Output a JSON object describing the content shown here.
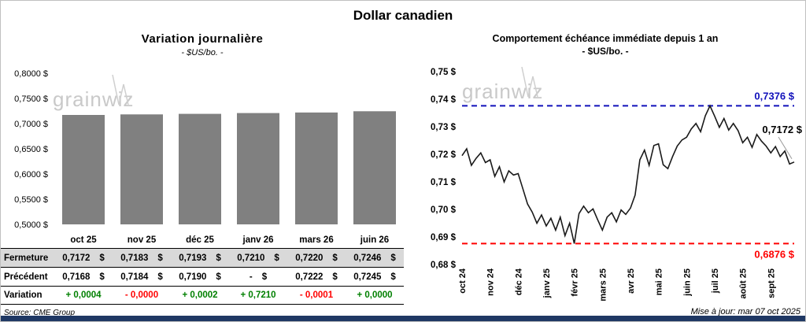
{
  "page": {
    "title": "Dollar canadien",
    "footer_strip_color": "#1f3864"
  },
  "left_panel": {
    "title": "Variation journalière",
    "subtitle": "- $US/bo. -",
    "source": "Source: CME Group",
    "watermark": "grainwiz"
  },
  "right_panel": {
    "title": "Comportement échéance immédiate depuis 1 an",
    "subtitle": "- $US/bo. -",
    "update": "Mise à jour: mar 07 oct 2025",
    "watermark": "grainwiz"
  },
  "table": {
    "col_headers": [
      "oct 25",
      "nov 25",
      "déc 25",
      "janv 26",
      "mars 26",
      "juin 26"
    ],
    "rows": [
      {
        "label": "Fermeture",
        "values": [
          "0,7172",
          "0,7183",
          "0,7193",
          "0,7210",
          "0,7220",
          "0,7246"
        ],
        "suffix": "$",
        "bg": "#d9d9d9"
      },
      {
        "label": "Précédent",
        "values": [
          "0,7168",
          "0,7184",
          "0,7190",
          "-",
          "0,7222",
          "0,7245"
        ],
        "suffix": "$"
      },
      {
        "label": "Variation",
        "values": [
          "+ 0,0004",
          "- 0,0000",
          "+ 0,0002",
          "+ 0,7210",
          "- 0,0001",
          "+ 0,0000"
        ],
        "colors": [
          "#008000",
          "#ff0000",
          "#008000",
          "#008000",
          "#ff0000",
          "#008000"
        ]
      }
    ]
  },
  "chart_data": [
    {
      "type": "bar",
      "title": "Variation journalière",
      "subtitle": "- $US/bo. -",
      "categories": [
        "oct 25",
        "nov 25",
        "déc 25",
        "janv 26",
        "mars 26",
        "juin 26"
      ],
      "values": [
        0.7172,
        0.7183,
        0.7193,
        0.721,
        0.722,
        0.7246
      ],
      "ylim": [
        0.5,
        0.8
      ],
      "ytick_step": 0.05,
      "ytick_labels": [
        "0,8000 $",
        "0,7500 $",
        "0,7000 $",
        "0,6500 $",
        "0,6000 $",
        "0,5500 $",
        "0,5000 $"
      ],
      "bar_color": "#808080"
    },
    {
      "type": "line",
      "title": "Comportement échéance immédiate depuis 1 an",
      "subtitle": "- $US/bo. -",
      "x_labels": [
        "oct 24",
        "nov 24",
        "déc 24",
        "janv 25",
        "févr 25",
        "mars 25",
        "avr 25",
        "mai 25",
        "juin 25",
        "juil 25",
        "août 25",
        "sept 25"
      ],
      "points_per_month": 6,
      "values": [
        0.7195,
        0.722,
        0.716,
        0.7185,
        0.7205,
        0.717,
        0.718,
        0.712,
        0.7155,
        0.71,
        0.714,
        0.7125,
        0.713,
        0.7075,
        0.702,
        0.699,
        0.695,
        0.698,
        0.694,
        0.6968,
        0.6925,
        0.6972,
        0.6905,
        0.695,
        0.6876,
        0.6985,
        0.7012,
        0.6988,
        0.7002,
        0.6962,
        0.6925,
        0.6972,
        0.6988,
        0.6955,
        0.6998,
        0.6982,
        0.7005,
        0.7052,
        0.718,
        0.7215,
        0.716,
        0.7232,
        0.7238,
        0.7162,
        0.7148,
        0.7192,
        0.723,
        0.7252,
        0.7262,
        0.7292,
        0.7312,
        0.7282,
        0.734,
        0.7376,
        0.7338,
        0.7298,
        0.733,
        0.7288,
        0.7312,
        0.7286,
        0.7242,
        0.7262,
        0.7225,
        0.7272,
        0.7248,
        0.723,
        0.7205,
        0.7228,
        0.7192,
        0.7212,
        0.7165,
        0.7172
      ],
      "ylim": [
        0.68,
        0.75
      ],
      "ytick_step": 0.01,
      "ytick_labels": [
        "0,75 $",
        "0,74 $",
        "0,73 $",
        "0,72 $",
        "0,71 $",
        "0,70 $",
        "0,69 $",
        "0,68 $"
      ],
      "line_color": "#1a1a1a",
      "hlines": [
        {
          "value": 0.7376,
          "color": "#1111bb",
          "label": "0,7376 $"
        },
        {
          "value": 0.6876,
          "color": "#ff0000",
          "label": "0,6876 $"
        }
      ],
      "end_label": {
        "text": "0,7172 $",
        "color": "#000000",
        "value": 0.7172
      }
    }
  ]
}
